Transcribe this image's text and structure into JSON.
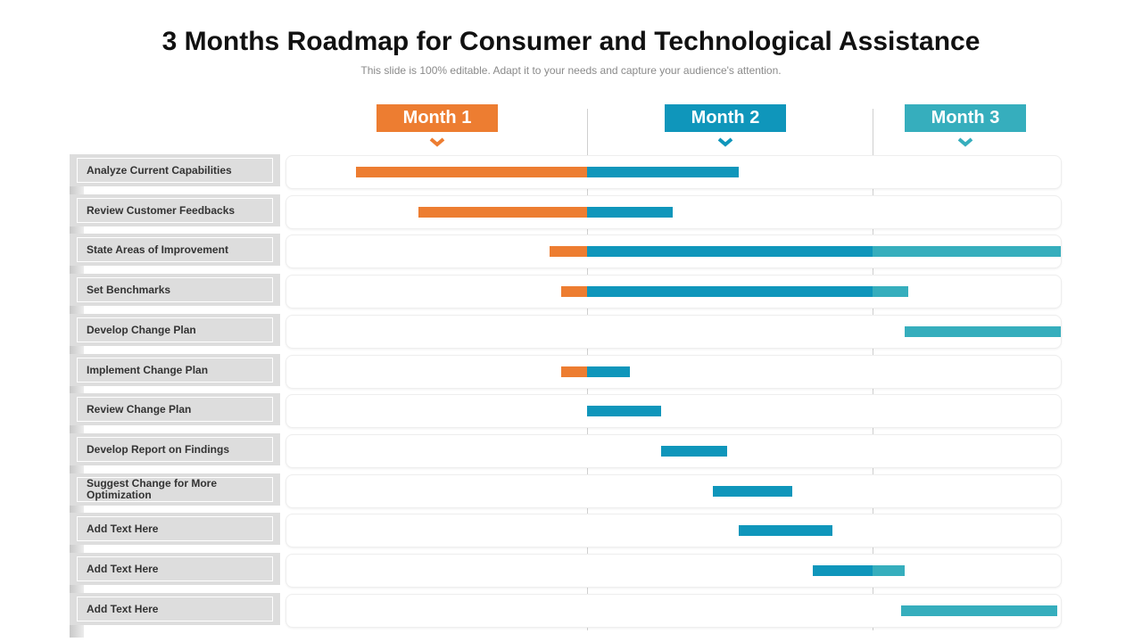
{
  "header": {
    "title": "3 Months Roadmap for Consumer and Technological Assistance",
    "subtitle": "This slide is 100% editable. Adapt it to your needs and capture your audience's attention."
  },
  "months": [
    {
      "label": "Month 1",
      "color": "#ed7d31"
    },
    {
      "label": "Month 2",
      "color": "#0f96bb"
    },
    {
      "label": "Month 3",
      "color": "#36aebd"
    }
  ],
  "tasks": [
    {
      "label": "Analyze Current Capabilities"
    },
    {
      "label": "Review Customer Feedbacks"
    },
    {
      "label": "State Areas of Improvement"
    },
    {
      "label": "Set Benchmarks"
    },
    {
      "label": "Develop Change Plan"
    },
    {
      "label": "Implement Change Plan"
    },
    {
      "label": "Review Change Plan"
    },
    {
      "label": "Develop Report on Findings"
    },
    {
      "label": "Suggest Change for More Optimization"
    },
    {
      "label": "Add Text Here"
    },
    {
      "label": "Add Text Here"
    },
    {
      "label": "Add Text Here"
    }
  ],
  "chart_data": {
    "type": "gantt",
    "title": "3 Months Roadmap for Consumer and Technological Assistance",
    "x_unit": "months",
    "xlim": [
      0,
      3
    ],
    "categories": [
      "Analyze Current Capabilities",
      "Review Customer Feedbacks",
      "State Areas of Improvement",
      "Set Benchmarks",
      "Develop Change Plan",
      "Implement Change Plan",
      "Review Change Plan",
      "Develop Report on Findings",
      "Suggest Change for More Optimization",
      "Add Text Here",
      "Add Text Here",
      "Add Text Here"
    ],
    "tasks": [
      {
        "start": 0.19,
        "end": 1.53
      },
      {
        "start": 0.41,
        "end": 1.3
      },
      {
        "start": 0.87,
        "end": 3.0
      },
      {
        "start": 0.91,
        "end": 2.19
      },
      {
        "start": 2.17,
        "end": 3.0
      },
      {
        "start": 0.91,
        "end": 1.15
      },
      {
        "start": 1.0,
        "end": 1.26
      },
      {
        "start": 1.26,
        "end": 1.49
      },
      {
        "start": 1.44,
        "end": 1.72
      },
      {
        "start": 1.53,
        "end": 1.86
      },
      {
        "start": 1.79,
        "end": 2.17
      },
      {
        "start": 2.15,
        "end": 2.98
      }
    ]
  }
}
